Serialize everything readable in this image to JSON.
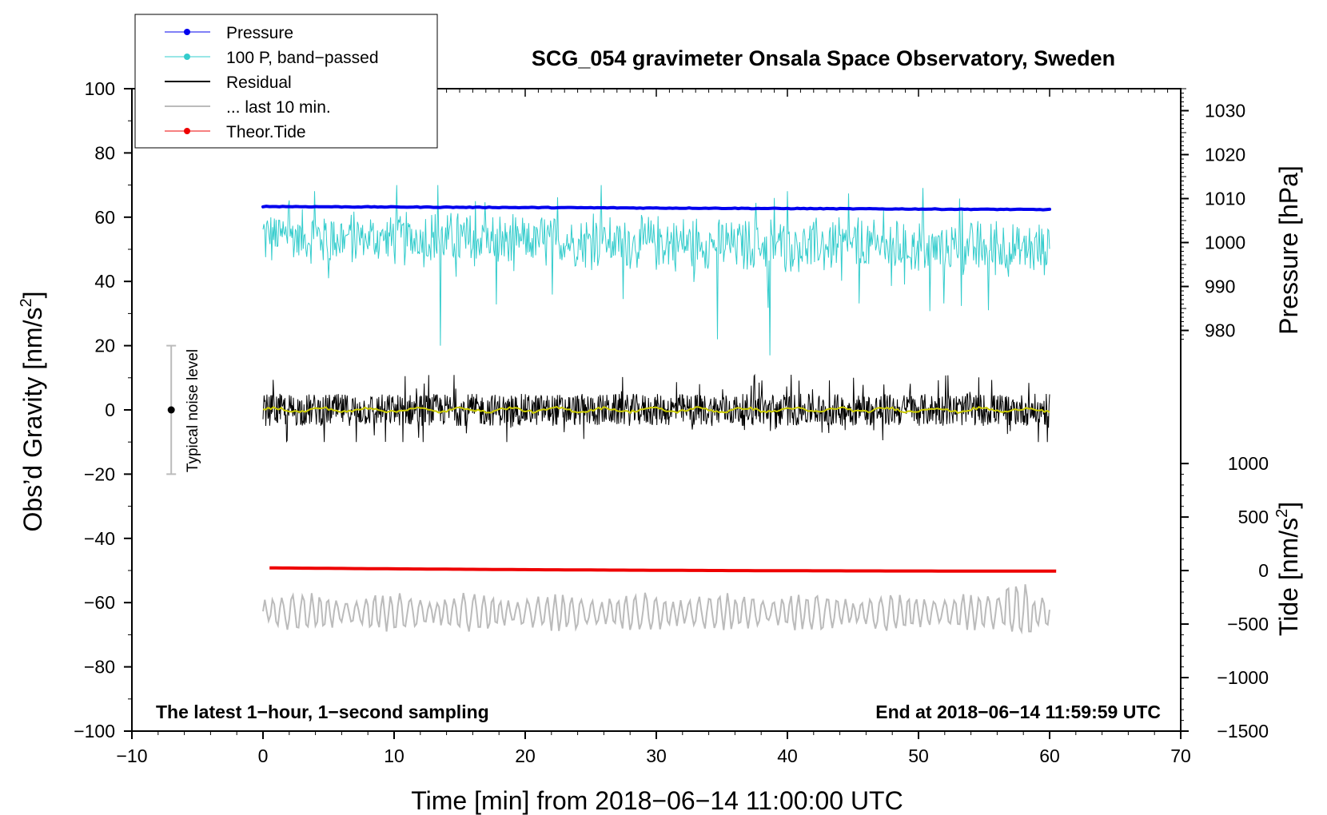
{
  "chart_data": {
    "type": "line",
    "title": "SCG_054 gravimeter Onsala Space Observatory, Sweden",
    "xlabel": "Time [min] from 2018−06−14 11:00:00 UTC",
    "ylabel": "Obs’d Gravity [nm/s",
    "ylabel_sup": "2",
    "ylabel_end": "]",
    "y2label": "Pressure [hPa]",
    "y3label": "Tide [nm/s",
    "y3label_sup": "2",
    "y3label_end": "]",
    "xlim": [
      -10,
      70
    ],
    "ylim": [
      -100,
      100
    ],
    "x_ticks": [
      -10,
      0,
      10,
      20,
      30,
      40,
      50,
      60,
      70
    ],
    "x_tick_labels": [
      "−10",
      "0",
      "10",
      "20",
      "30",
      "40",
      "50",
      "60",
      "70"
    ],
    "y_ticks": [
      -100,
      -80,
      -60,
      -40,
      -20,
      0,
      20,
      40,
      60,
      80,
      100
    ],
    "y_tick_labels": [
      "−100",
      "−80",
      "−60",
      "−40",
      "−20",
      "0",
      "20",
      "40",
      "60",
      "80",
      "100"
    ],
    "pressure_axis": {
      "ticks": [
        980,
        990,
        1000,
        1010,
        1020,
        1030
      ],
      "tick_labels": [
        "980",
        "990",
        "1000",
        "1010",
        "1020",
        "1030"
      ],
      "range_hPa": [
        978,
        1035
      ],
      "maps_to_gravity": [
        22,
        100
      ]
    },
    "tide_axis": {
      "ticks": [
        -1500,
        -1000,
        -500,
        0,
        500,
        1000
      ],
      "tick_labels": [
        "−1500",
        "−1000",
        "−500",
        "0",
        "500",
        "1000"
      ],
      "range": [
        -1500,
        1000
      ],
      "maps_to_gravity": [
        -100,
        -16.7
      ]
    },
    "series": [
      {
        "name": "Pressure",
        "color": "#0000ee",
        "x_range": [
          0,
          60
        ],
        "start_hPa": 1008.2,
        "end_hPa": 1007.5
      },
      {
        "name": "100 P, band−passed",
        "color": "#33cccc",
        "x_range": [
          0,
          60
        ],
        "baseline": 50,
        "min": 17,
        "max": 70
      },
      {
        "name": "Residual",
        "color": "#000000",
        "x_range": [
          0,
          60
        ],
        "baseline": 0,
        "min": -10,
        "max": 12
      },
      {
        "name": "... last 10 min.",
        "color": "#bbbbbb",
        "x_range": [
          0,
          60
        ],
        "baseline": -63,
        "min": -69,
        "max": -52
      },
      {
        "name": "Theor.Tide",
        "color": "#ee0000",
        "x_range": [
          0.5,
          60.5
        ],
        "start": 25,
        "end": -5
      }
    ],
    "legend": [
      "Pressure",
      "100 P, band−passed",
      "Residual",
      "... last 10 min.",
      "Theor.Tide"
    ],
    "legend_location": "top-left",
    "noise_bar": {
      "label": "Typical noise level",
      "x": -7,
      "center": 0,
      "low": -20,
      "high": 20
    },
    "annotations": {
      "left_note": "The latest 1−hour, 1−second sampling",
      "right_note": "End at 2018−06−14 11:59:59 UTC"
    }
  },
  "colors": {
    "pressure": "#0000ee",
    "bandpassed": "#33cccc",
    "residual": "#000000",
    "smoothed": "#cccc00",
    "last10": "#bbbbbb",
    "tide": "#ee0000",
    "noise_bar": "#bbbbbb"
  }
}
